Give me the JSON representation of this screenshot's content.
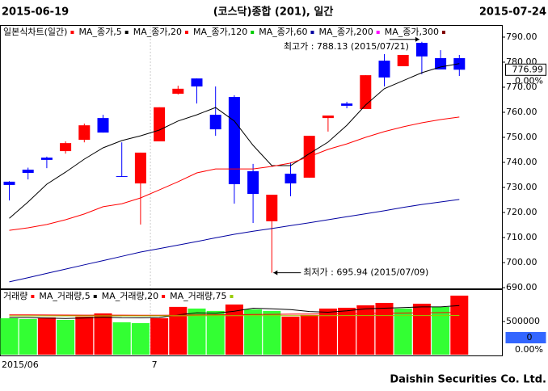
{
  "header": {
    "left": "2015-06-19",
    "title": "(코스닥)종합 (201), 일간",
    "right": "2015-07-24"
  },
  "chart_data": [
    {
      "type": "candlestick",
      "title": "일본식차트(일간)",
      "categories": [
        "2015/06",
        null,
        null,
        null,
        null,
        null,
        null,
        null,
        "7",
        null,
        null,
        null,
        null,
        null,
        null,
        null,
        null,
        null,
        null,
        null,
        null,
        null,
        null,
        null,
        null
      ],
      "open": [
        732.3,
        737.1,
        741.9,
        744.5,
        749.0,
        757.7,
        734.5,
        731.6,
        748.4,
        767.4,
        773.5,
        759.0,
        766.1,
        736.5,
        716.5,
        735.5,
        733.9,
        757.7,
        763.5,
        761.3,
        780.6,
        778.4,
        787.7,
        781.6,
        781.6
      ],
      "high": [
        732.5,
        737.9,
        742.3,
        748.4,
        755.5,
        759.0,
        748.0,
        743.9,
        762.0,
        770.6,
        773.5,
        770.3,
        766.8,
        739.4,
        727.1,
        740.0,
        750.6,
        758.7,
        764.2,
        774.8,
        783.2,
        782.9,
        788.13,
        784.8,
        782.9
      ],
      "low": [
        724.8,
        733.2,
        737.7,
        743.5,
        748.0,
        751.9,
        734.2,
        715.2,
        748.4,
        767.1,
        763.5,
        750.6,
        723.5,
        715.8,
        695.94,
        726.5,
        733.9,
        752.3,
        761.6,
        761.3,
        770.3,
        778.4,
        775.2,
        777.1,
        774.5
      ],
      "close": [
        731.0,
        735.8,
        741.0,
        747.7,
        754.8,
        751.9,
        734.2,
        743.9,
        762.0,
        769.4,
        770.3,
        753.2,
        731.3,
        727.4,
        727.1,
        731.6,
        750.6,
        758.7,
        762.6,
        774.8,
        773.9,
        782.9,
        782.3,
        777.1,
        776.99
      ],
      "up_color": "#ff0000",
      "down_color": "#0000ff",
      "series": [
        {
          "name": "MA_종가,5",
          "color": "#000000",
          "values": [
            717.7,
            724.2,
            731.3,
            736.1,
            741.3,
            745.8,
            748.7,
            750.6,
            752.9,
            756.5,
            759.0,
            761.9,
            756.5,
            746.8,
            738.7,
            738.7,
            743.5,
            748.1,
            754.8,
            762.9,
            769.4,
            772.6,
            775.8,
            778.1,
            779.4
          ]
        },
        {
          "name": "MA_종가,20",
          "color": "#ff0000",
          "values": [
            712.9,
            713.9,
            715.2,
            717.1,
            719.4,
            722.3,
            723.5,
            725.8,
            729.0,
            732.3,
            735.8,
            737.4,
            737.4,
            737.4,
            738.4,
            739.7,
            742.3,
            745.2,
            747.4,
            750.0,
            752.3,
            754.2,
            755.8,
            757.1,
            758.1
          ]
        },
        {
          "name": "MA_종가,120",
          "color": "#00cc00"
        },
        {
          "name": "MA_종가,60",
          "color": "#0000a0",
          "values": [
            692.3,
            694.0,
            695.7,
            697.4,
            699.1,
            700.8,
            702.5,
            704.2,
            705.6,
            707.0,
            708.4,
            709.9,
            711.3,
            712.5,
            713.6,
            714.8,
            715.9,
            717.1,
            718.3,
            719.5,
            720.7,
            722.0,
            723.2,
            724.2,
            725.2
          ]
        },
        {
          "name": "MA_종가,200",
          "color": "#ff00ff"
        },
        {
          "name": "MA_종가,300",
          "color": "#800000"
        }
      ],
      "ylim": [
        689.7,
        794.5
      ],
      "yticks": [
        {
          "value": 690,
          "label": "690.00"
        },
        {
          "value": 700,
          "label": "700.00"
        },
        {
          "value": 710,
          "label": "710.00"
        },
        {
          "value": 720,
          "label": "720.00"
        },
        {
          "value": 730,
          "label": "730.00"
        },
        {
          "value": 740,
          "label": "740.00"
        },
        {
          "value": 750,
          "label": "750.00"
        },
        {
          "value": 760,
          "label": "760.00"
        },
        {
          "value": 770,
          "label": "770.00"
        },
        {
          "value": 780,
          "label": "780.00"
        },
        {
          "value": 790,
          "label": "790.00"
        }
      ],
      "last_label": "776.99",
      "change_label": "0.00%",
      "annotations": [
        {
          "text": "최고가 : 788.13 (2015/07/21)",
          "color": "#ff0000"
        },
        {
          "text": "최저가 : 695.94 (2015/07/09)",
          "color": "#0000cc"
        }
      ]
    },
    {
      "type": "bar",
      "title": "거래량",
      "title_color": "#ff0000",
      "values": [
        549000,
        537000,
        561000,
        524000,
        573000,
        622000,
        488000,
        476000,
        549000,
        720000,
        695000,
        659000,
        756000,
        683000,
        659000,
        573000,
        598000,
        695000,
        707000,
        744000,
        780000,
        695000,
        768000,
        720000,
        890000
      ],
      "colors": [
        "#33ff33",
        "#33ff33",
        "#ff0000",
        "#33ff33",
        "#ff0000",
        "#ff0000",
        "#33ff33",
        "#33ff33",
        "#ff0000",
        "#ff0000",
        "#33ff33",
        "#33ff33",
        "#ff0000",
        "#33ff33",
        "#33ff33",
        "#ff0000",
        "#ff0000",
        "#ff0000",
        "#ff0000",
        "#ff0000",
        "#ff0000",
        "#33ff33",
        "#ff0000",
        "#33ff33",
        "#ff0000"
      ],
      "series": [
        {
          "name": "MA_거래량,5",
          "color": "#000000",
          "values": [
            560000,
            560000,
            550000,
            545000,
            553000,
            565000,
            556000,
            555000,
            560000,
            600000,
            630000,
            625000,
            655000,
            700000,
            690000,
            680000,
            650000,
            640000,
            660000,
            690000,
            700000,
            710000,
            720000,
            720000,
            740000
          ]
        },
        {
          "name": "MA_거래량,20",
          "color": "#ff0000",
          "values": [
            600000,
            600000,
            598000,
            597000,
            596000,
            596000,
            595000,
            594000,
            594000,
            596000,
            598000,
            600000,
            603000,
            606000,
            608000,
            610000,
            612000,
            615000,
            618000,
            621000,
            624000,
            627000,
            630000,
            633000,
            636000
          ]
        },
        {
          "name": "MA_거래량,75",
          "color": "#99cc00",
          "values": [
            585000,
            585000,
            585000,
            585000,
            585000,
            585000,
            585000,
            585000,
            586000,
            586000,
            586000,
            586000,
            587000,
            587000,
            587000,
            588000,
            588000,
            588000,
            589000,
            589000,
            589000,
            590000,
            590000,
            590000,
            591000
          ]
        }
      ],
      "ylim": [
        0,
        950000
      ],
      "yticks": [
        500000
      ],
      "last_label": "0",
      "change_label": "0.00%"
    }
  ],
  "footer": "Daishin Securities Co. Ltd."
}
